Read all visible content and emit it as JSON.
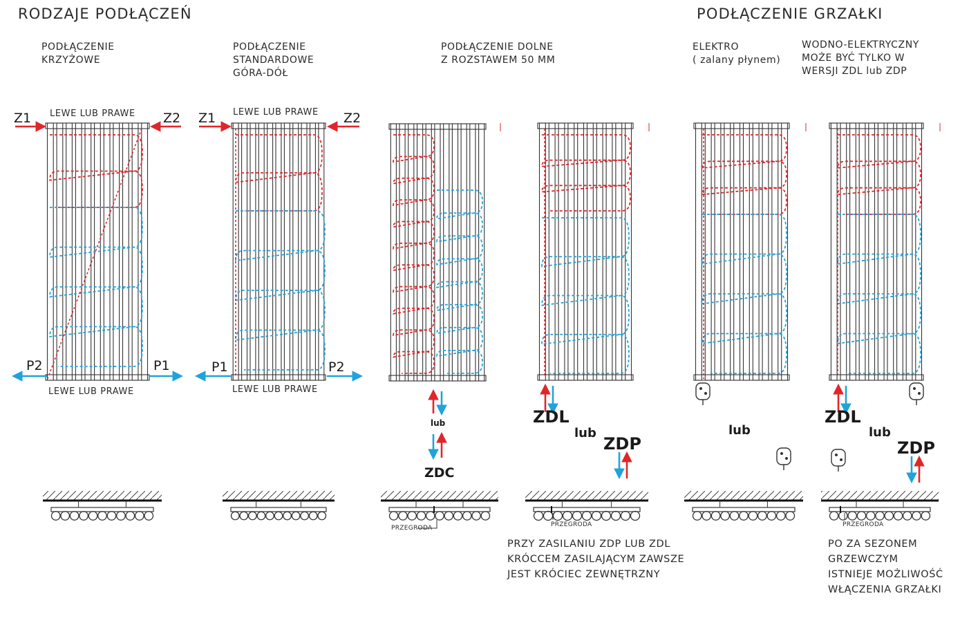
{
  "headings": {
    "left": "RODZAJE PODŁĄCZEŃ",
    "right": "PODŁĄCZENIE GRZAŁKI"
  },
  "sections": {
    "cross": "PODŁĄCZENIE\nKRZYŻOWE",
    "standard": "PODŁĄCZENIE\nSTANDARDOWE\nGÓRA-DÓŁ",
    "bottom": "PODŁĄCZENIE DOLNE\nZ ROZSTAWEM 50 MM",
    "elektro": "ELEKTRO\n( zalany płynem)",
    "hybrid": "WODNO-ELEKTRYCZNY\nMOŻE BYĆ TYLKO W\nWERSJI ZDL lub ZDP"
  },
  "labels": {
    "side_either": "LEWE LUB PRAWE",
    "z1": "Z1",
    "z2": "Z2",
    "p1": "P1",
    "p2": "P2",
    "lub": "lub",
    "zdc": "ZDC",
    "zdl": "ZDL",
    "zdp": "ZDP",
    "partition": "PRZEGRODA"
  },
  "notes": {
    "zdp_zdl": "PRZY ZASILANIU ZDP LUB ZDL\nKRÓCCEM ZASILAJĄCYM ZAWSZE\nJEST KRÓCIEC ZEWNĘTRZNY",
    "offseason": "PO ZA SEZONEM\nGRZEWCZYM\nISTNIEJE MOŻLIWOŚĆ\nWŁĄCZENIA GRZAŁKI"
  },
  "colors": {
    "hot": "#e0262b",
    "cold": "#1fa3dc",
    "line": "#333333"
  }
}
